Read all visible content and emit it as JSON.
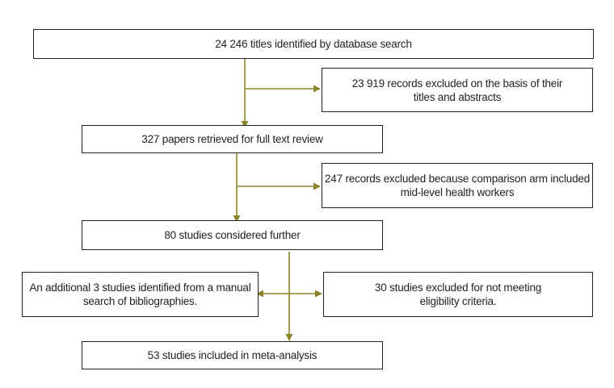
{
  "colors": {
    "arrow": "#8c8428",
    "border": "#231f20",
    "text": "#231f20",
    "background": "#ffffff"
  },
  "boxes": {
    "identified": "24 246 titles identified by database search",
    "excluded_titles": "23 919 records excluded on the basis of their\ntitles and abstracts",
    "full_text": "327 papers retrieved for full text review",
    "excluded_comparison": "247 records excluded because comparison arm included\nmid-level health workers",
    "considered": "80 studies considered further",
    "additional": "An additional 3 studies identified from a manual\nsearch of bibliographies.",
    "excluded_eligibility": "30 studies excluded for not meeting\neligibility criteria.",
    "included": "53 studies included in meta-analysis"
  }
}
